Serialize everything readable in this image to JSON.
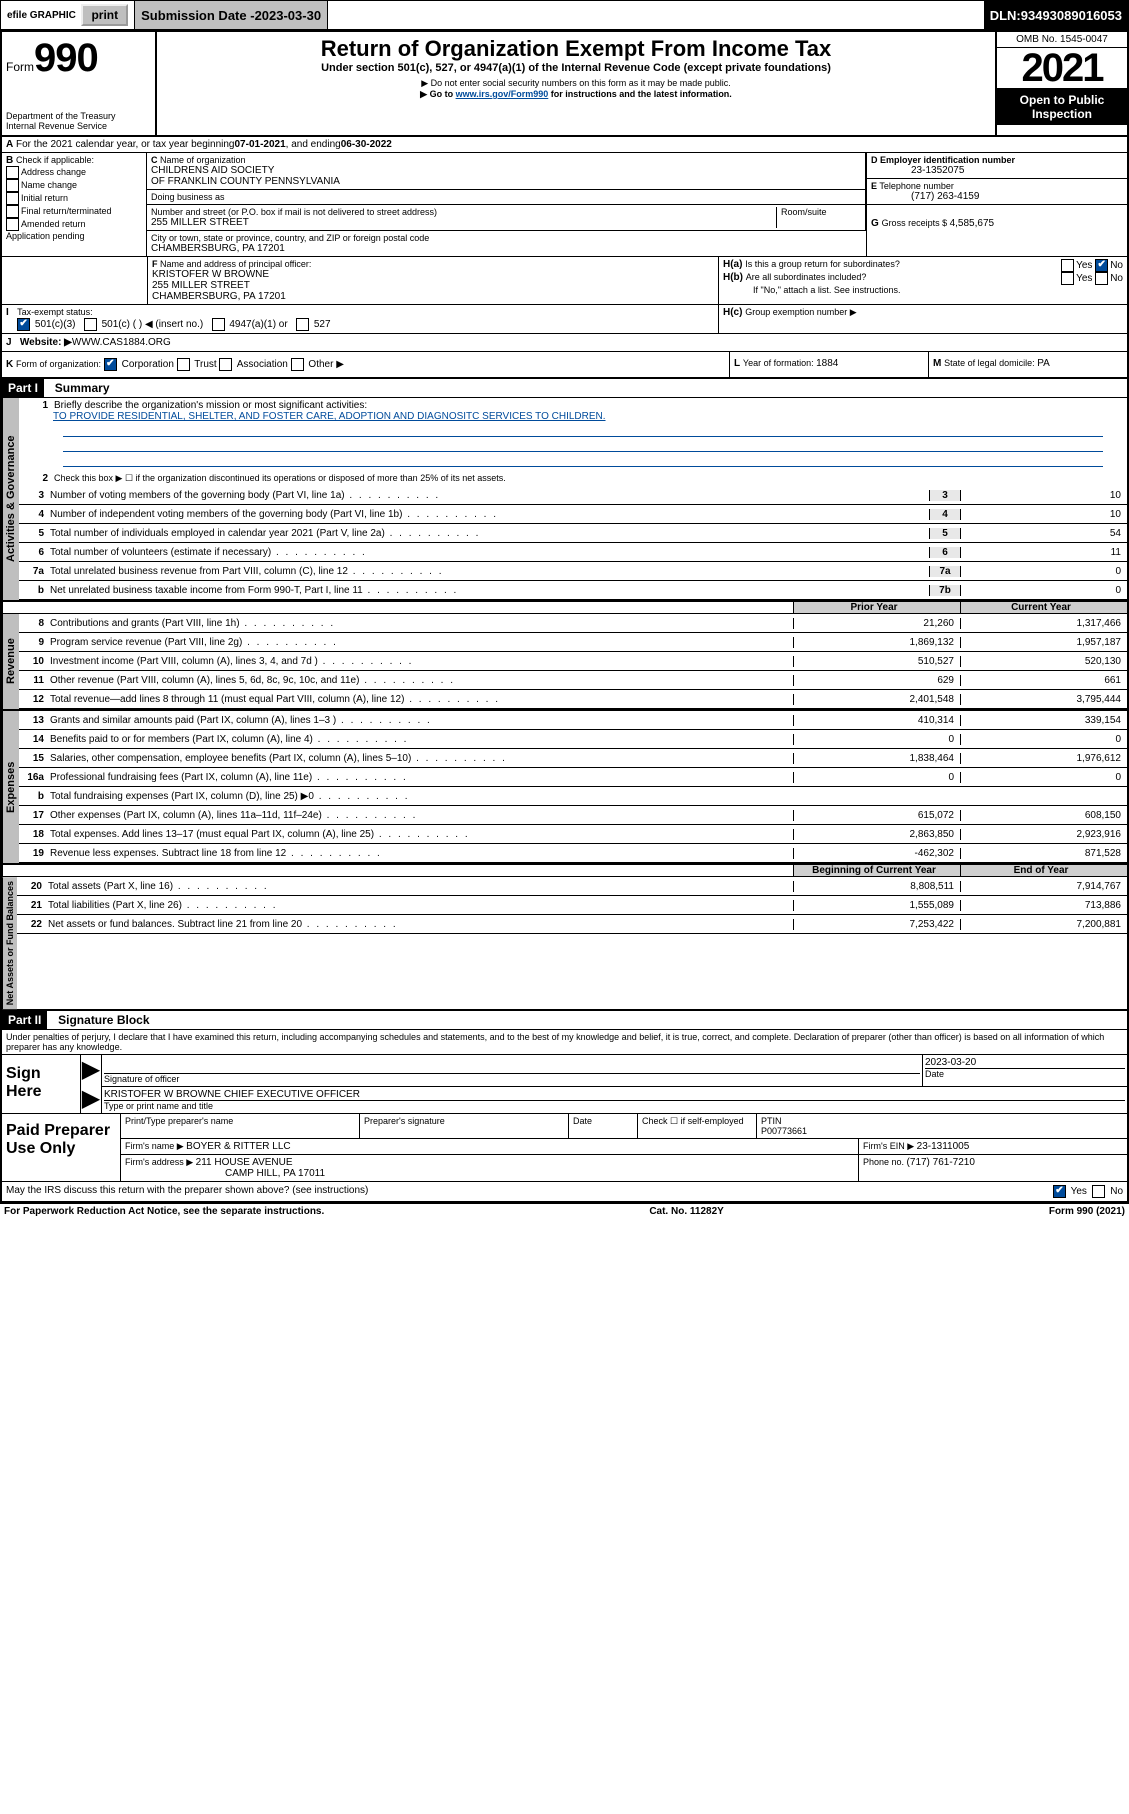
{
  "topbar": {
    "efile": "efile GRAPHIC",
    "print": "print",
    "sub_label": "Submission Date - ",
    "sub_date": "2023-03-30",
    "dln_label": "DLN: ",
    "dln": "93493089016053"
  },
  "header": {
    "form_prefix": "Form",
    "form_number": "990",
    "dept": "Department of the Treasury",
    "irs": "Internal Revenue Service",
    "title": "Return of Organization Exempt From Income Tax",
    "subtitle": "Under section 501(c), 527, or 4947(a)(1) of the Internal Revenue Code (except private foundations)",
    "note1": "▶ Do not enter social security numbers on this form as it may be made public.",
    "note2_pre": "▶ Go to ",
    "note2_link": "www.irs.gov/Form990",
    "note2_post": " for instructions and the latest information.",
    "omb": "OMB No. 1545-0047",
    "year": "2021",
    "inspect": "Open to Public Inspection"
  },
  "periodA": {
    "text_pre": "For the 2021 calendar year, or tax year beginning ",
    "begin": "07-01-2021",
    "mid": " , and ending ",
    "end": "06-30-2022"
  },
  "sectionB": {
    "label": "Check if applicable:",
    "items": [
      "Address change",
      "Name change",
      "Initial return",
      "Final return/terminated",
      "Amended return",
      "Application pending"
    ]
  },
  "sectionC": {
    "name_label": "Name of organization",
    "name1": "CHILDRENS AID SOCIETY",
    "name2": "OF FRANKLIN COUNTY PENNSYLVANIA",
    "dba": "Doing business as",
    "addr_label": "Number and street (or P.O. box if mail is not delivered to street address)",
    "room_label": "Room/suite",
    "addr": "255 MILLER STREET",
    "city_label": "City or town, state or province, country, and ZIP or foreign postal code",
    "city": "CHAMBERSBURG, PA  17201"
  },
  "sectionD": {
    "label": "Employer identification number",
    "ein": "23-1352075"
  },
  "sectionE": {
    "label": "Telephone number",
    "phone": "(717) 263-4159"
  },
  "sectionG": {
    "label": "Gross receipts $ ",
    "val": "4,585,675"
  },
  "sectionF": {
    "label": "Name and address of principal officer:",
    "name": "KRISTOFER W BROWNE",
    "addr": "255 MILLER STREET",
    "city": "CHAMBERSBURG, PA  17201"
  },
  "sectionH": {
    "a": "Is this a group return for subordinates?",
    "b": "Are all subordinates included?",
    "c_note": "If \"No,\" attach a list. See instructions.",
    "c_label": "Group exemption number ▶"
  },
  "sectionI": {
    "label": "Tax-exempt status:",
    "opts": [
      "501(c)(3)",
      "501(c) (   ) ◀ (insert no.)",
      "4947(a)(1) or",
      "527"
    ]
  },
  "sectionJ": {
    "label": "Website: ▶ ",
    "val": "WWW.CAS1884.ORG"
  },
  "sectionK": {
    "label": "Form of organization:",
    "opts": [
      "Corporation",
      "Trust",
      "Association",
      "Other ▶"
    ]
  },
  "sectionL": {
    "label": "Year of formation: ",
    "val": "1884"
  },
  "sectionM": {
    "label": "State of legal domicile: ",
    "val": "PA"
  },
  "part1": {
    "header": "Part I",
    "title": "Summary",
    "line1_label": "Briefly describe the organization's mission or most significant activities:",
    "line1_val": "TO PROVIDE RESIDENTIAL, SHELTER, AND FOSTER CARE, ADOPTION AND DIAGNOSITC SERVICES TO CHILDREN.",
    "line2": "Check this box ▶ ☐ if the organization discontinued its operations or disposed of more than 25% of its net assets.",
    "rows_gov": [
      {
        "n": "3",
        "label": "Number of voting members of the governing body (Part VI, line 1a)",
        "box": "3",
        "v": "10"
      },
      {
        "n": "4",
        "label": "Number of independent voting members of the governing body (Part VI, line 1b)",
        "box": "4",
        "v": "10"
      },
      {
        "n": "5",
        "label": "Total number of individuals employed in calendar year 2021 (Part V, line 2a)",
        "box": "5",
        "v": "54"
      },
      {
        "n": "6",
        "label": "Total number of volunteers (estimate if necessary)",
        "box": "6",
        "v": "11"
      },
      {
        "n": "7a",
        "label": "Total unrelated business revenue from Part VIII, column (C), line 12",
        "box": "7a",
        "v": "0"
      },
      {
        "n": "b",
        "label": "Net unrelated business taxable income from Form 990-T, Part I, line 11",
        "box": "7b",
        "v": "0"
      }
    ],
    "col_headers": {
      "prior": "Prior Year",
      "current": "Current Year"
    },
    "rows_rev": [
      {
        "n": "8",
        "label": "Contributions and grants (Part VIII, line 1h)",
        "p": "21,260",
        "c": "1,317,466"
      },
      {
        "n": "9",
        "label": "Program service revenue (Part VIII, line 2g)",
        "p": "1,869,132",
        "c": "1,957,187"
      },
      {
        "n": "10",
        "label": "Investment income (Part VIII, column (A), lines 3, 4, and 7d )",
        "p": "510,527",
        "c": "520,130"
      },
      {
        "n": "11",
        "label": "Other revenue (Part VIII, column (A), lines 5, 6d, 8c, 9c, 10c, and 11e)",
        "p": "629",
        "c": "661"
      },
      {
        "n": "12",
        "label": "Total revenue—add lines 8 through 11 (must equal Part VIII, column (A), line 12)",
        "p": "2,401,548",
        "c": "3,795,444"
      }
    ],
    "rows_exp": [
      {
        "n": "13",
        "label": "Grants and similar amounts paid (Part IX, column (A), lines 1–3 )",
        "p": "410,314",
        "c": "339,154"
      },
      {
        "n": "14",
        "label": "Benefits paid to or for members (Part IX, column (A), line 4)",
        "p": "0",
        "c": "0"
      },
      {
        "n": "15",
        "label": "Salaries, other compensation, employee benefits (Part IX, column (A), lines 5–10)",
        "p": "1,838,464",
        "c": "1,976,612"
      },
      {
        "n": "16a",
        "label": "Professional fundraising fees (Part IX, column (A), line 11e)",
        "p": "0",
        "c": "0"
      },
      {
        "n": "b",
        "label": "Total fundraising expenses (Part IX, column (D), line 25) ▶0",
        "p": "",
        "c": "",
        "shade": true
      },
      {
        "n": "17",
        "label": "Other expenses (Part IX, column (A), lines 11a–11d, 11f–24e)",
        "p": "615,072",
        "c": "608,150"
      },
      {
        "n": "18",
        "label": "Total expenses. Add lines 13–17 (must equal Part IX, column (A), line 25)",
        "p": "2,863,850",
        "c": "2,923,916"
      },
      {
        "n": "19",
        "label": "Revenue less expenses. Subtract line 18 from line 12",
        "p": "-462,302",
        "c": "871,528"
      }
    ],
    "col_headers2": {
      "begin": "Beginning of Current Year",
      "end": "End of Year"
    },
    "rows_net": [
      {
        "n": "20",
        "label": "Total assets (Part X, line 16)",
        "p": "8,808,511",
        "c": "7,914,767"
      },
      {
        "n": "21",
        "label": "Total liabilities (Part X, line 26)",
        "p": "1,555,089",
        "c": "713,886"
      },
      {
        "n": "22",
        "label": "Net assets or fund balances. Subtract line 21 from line 20",
        "p": "7,253,422",
        "c": "7,200,881"
      }
    ],
    "vtabs": {
      "gov": "Activities & Governance",
      "rev": "Revenue",
      "exp": "Expenses",
      "net": "Net Assets or Fund Balances"
    }
  },
  "part2": {
    "header": "Part II",
    "title": "Signature Block",
    "penalty": "Under penalties of perjury, I declare that I have examined this return, including accompanying schedules and statements, and to the best of my knowledge and belief, it is true, correct, and complete. Declaration of preparer (other than officer) is based on all information of which preparer has any knowledge.",
    "sign_here": "Sign Here",
    "sig_officer": "Signature of officer",
    "sig_date": "2023-03-20",
    "date_label": "Date",
    "officer_name": "KRISTOFER W BROWNE  CHIEF EXECUTIVE OFFICER",
    "type_name": "Type or print name and title",
    "paid_prep": "Paid Preparer Use Only",
    "prep_name_label": "Print/Type preparer's name",
    "prep_sig_label": "Preparer's signature",
    "prep_date_label": "Date",
    "check_if": "Check ☐ if self-employed",
    "ptin_label": "PTIN",
    "ptin": "P00773661",
    "firm_name_label": "Firm's name    ▶ ",
    "firm_name": "BOYER & RITTER LLC",
    "firm_ein_label": "Firm's EIN ▶ ",
    "firm_ein": "23-1311005",
    "firm_addr_label": "Firm's address ▶ ",
    "firm_addr1": "211 HOUSE AVENUE",
    "firm_addr2": "CAMP HILL, PA  17011",
    "phone_label": "Phone no. ",
    "phone": "(717) 761-7210",
    "discuss": "May the IRS discuss this return with the preparer shown above? (see instructions)"
  },
  "footer": {
    "left": "For Paperwork Reduction Act Notice, see the separate instructions.",
    "mid": "Cat. No. 11282Y",
    "right": "Form 990 (2021)"
  }
}
